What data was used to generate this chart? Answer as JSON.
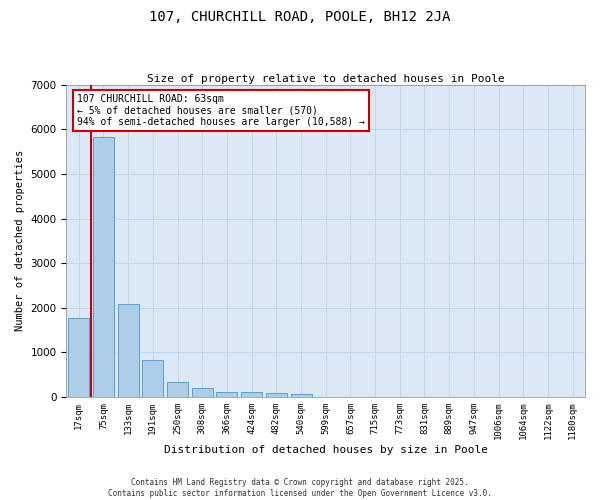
{
  "title_line1": "107, CHURCHILL ROAD, POOLE, BH12 2JA",
  "title_line2": "Size of property relative to detached houses in Poole",
  "xlabel": "Distribution of detached houses by size in Poole",
  "ylabel": "Number of detached properties",
  "categories": [
    "17sqm",
    "75sqm",
    "133sqm",
    "191sqm",
    "250sqm",
    "308sqm",
    "366sqm",
    "424sqm",
    "482sqm",
    "540sqm",
    "599sqm",
    "657sqm",
    "715sqm",
    "773sqm",
    "831sqm",
    "889sqm",
    "947sqm",
    "1006sqm",
    "1064sqm",
    "1122sqm",
    "1180sqm"
  ],
  "values": [
    1780,
    5820,
    2080,
    820,
    340,
    190,
    120,
    110,
    95,
    70,
    0,
    0,
    0,
    0,
    0,
    0,
    0,
    0,
    0,
    0,
    0
  ],
  "bar_color": "#aecde8",
  "bar_edge_color": "#5a9fd4",
  "background_color": "#dce8f5",
  "grid_color": "#b8cfe8",
  "vline_color": "#cc0000",
  "annotation_title": "107 CHURCHILL ROAD: 63sqm",
  "annotation_line2": "← 5% of detached houses are smaller (570)",
  "annotation_line3": "94% of semi-detached houses are larger (10,588) →",
  "annotation_box_color": "#cc0000",
  "ylim": [
    0,
    7000
  ],
  "yticks": [
    0,
    1000,
    2000,
    3000,
    4000,
    5000,
    6000,
    7000
  ],
  "footer_line1": "Contains HM Land Registry data © Crown copyright and database right 2025.",
  "footer_line2": "Contains public sector information licensed under the Open Government Licence v3.0."
}
